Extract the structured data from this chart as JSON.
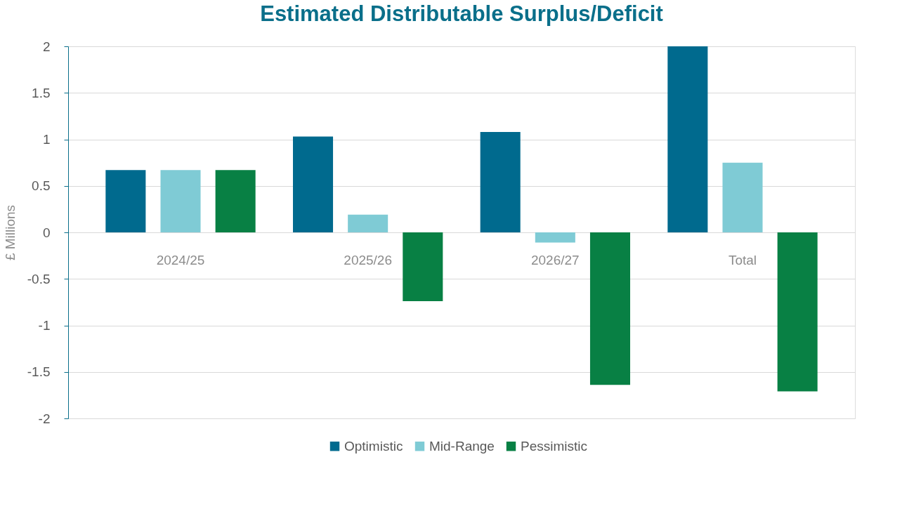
{
  "chart_data": {
    "type": "bar",
    "title": "Estimated Distributable Surplus/Deficit",
    "ylabel": "£ Millions",
    "categories": [
      "2024/25",
      "2025/26",
      "2026/27",
      "Total"
    ],
    "series": [
      {
        "name": "Optimistic",
        "color": "#006a8e",
        "values": [
          0.67,
          1.03,
          1.08,
          2.0
        ]
      },
      {
        "name": "Mid-Range",
        "color": "#7fcbd5",
        "values": [
          0.67,
          0.19,
          -0.11,
          0.75
        ]
      },
      {
        "name": "Pessimistic",
        "color": "#088044",
        "values": [
          0.67,
          -0.74,
          -1.64,
          -1.71
        ]
      }
    ],
    "ylim": [
      -2,
      2
    ],
    "yticks": [
      -2,
      -1.5,
      -1,
      -0.5,
      0,
      0.5,
      1,
      1.5,
      2
    ],
    "grid": "y",
    "legend": "bottom"
  }
}
